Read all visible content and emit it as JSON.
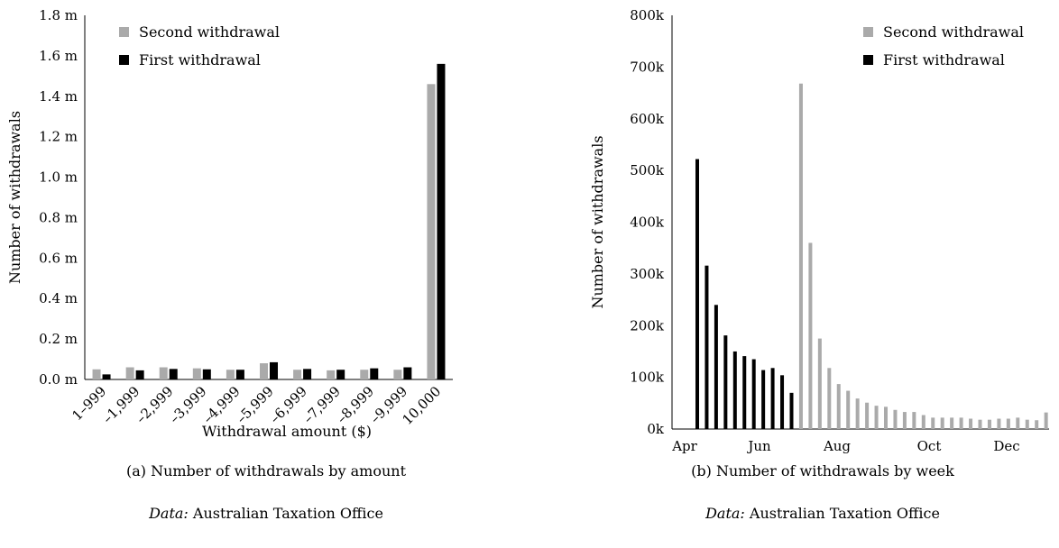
{
  "colors": {
    "second": "#aaaaaa",
    "first": "#000000",
    "axis": "#000000"
  },
  "panel_a": {
    "caption": "(a) Number of withdrawals by amount",
    "source_prefix": "Data:",
    "source_text": "Australian Taxation Office"
  },
  "panel_b": {
    "caption": "(b) Number of withdrawals by week",
    "source_prefix": "Data:",
    "source_text": "Australian Taxation Office"
  },
  "chart_data": [
    {
      "type": "bar",
      "ylabel": "Number of withdrawals",
      "xlabel": "Withdrawal amount ($)",
      "ylim": [
        0,
        1.8
      ],
      "yticks": [
        "0.0 m",
        "0.2 m",
        "0.4 m",
        "0.6 m",
        "0.8 m",
        "1.0 m",
        "1.2 m",
        "1.4 m",
        "1.6 m",
        "1.8 m"
      ],
      "legend_position": "top-left",
      "categories": [
        "1–999",
        "–1,999",
        "–2,999",
        "–3,999",
        "–4,999",
        "–5,999",
        "–6,999",
        "–7,999",
        "–8,999",
        "–9,999",
        "10,000"
      ],
      "series": [
        {
          "name": "Second withdrawal",
          "color": "#aaaaaa",
          "values": [
            0.05,
            0.06,
            0.06,
            0.055,
            0.048,
            0.08,
            0.048,
            0.045,
            0.048,
            0.048,
            1.46
          ]
        },
        {
          "name": "First withdrawal",
          "color": "#000000",
          "values": [
            0.025,
            0.045,
            0.052,
            0.05,
            0.048,
            0.085,
            0.052,
            0.048,
            0.055,
            0.06,
            1.56
          ]
        }
      ]
    },
    {
      "type": "bar",
      "ylabel": "Number of withdrawals",
      "xlabel": "",
      "ylim": [
        0,
        800
      ],
      "yticks": [
        "0k",
        "100k",
        "200k",
        "300k",
        "400k",
        "500k",
        "600k",
        "700k",
        "800k"
      ],
      "xticks": [
        "Apr",
        "Jun",
        "Aug",
        "Oct",
        "Dec"
      ],
      "legend_position": "top-right",
      "series": [
        {
          "name": "First withdrawal",
          "color": "#000000",
          "values": [
            522,
            316,
            240,
            181,
            150,
            141,
            135,
            114,
            118,
            104,
            70
          ]
        },
        {
          "name": "Second withdrawal",
          "color": "#aaaaaa",
          "values": [
            668,
            360,
            175,
            118,
            87,
            74,
            59,
            51,
            45,
            43,
            37,
            33,
            33,
            27,
            22,
            22,
            22,
            22,
            20,
            18,
            18,
            20,
            20,
            22,
            18,
            17,
            32
          ]
        }
      ]
    }
  ]
}
